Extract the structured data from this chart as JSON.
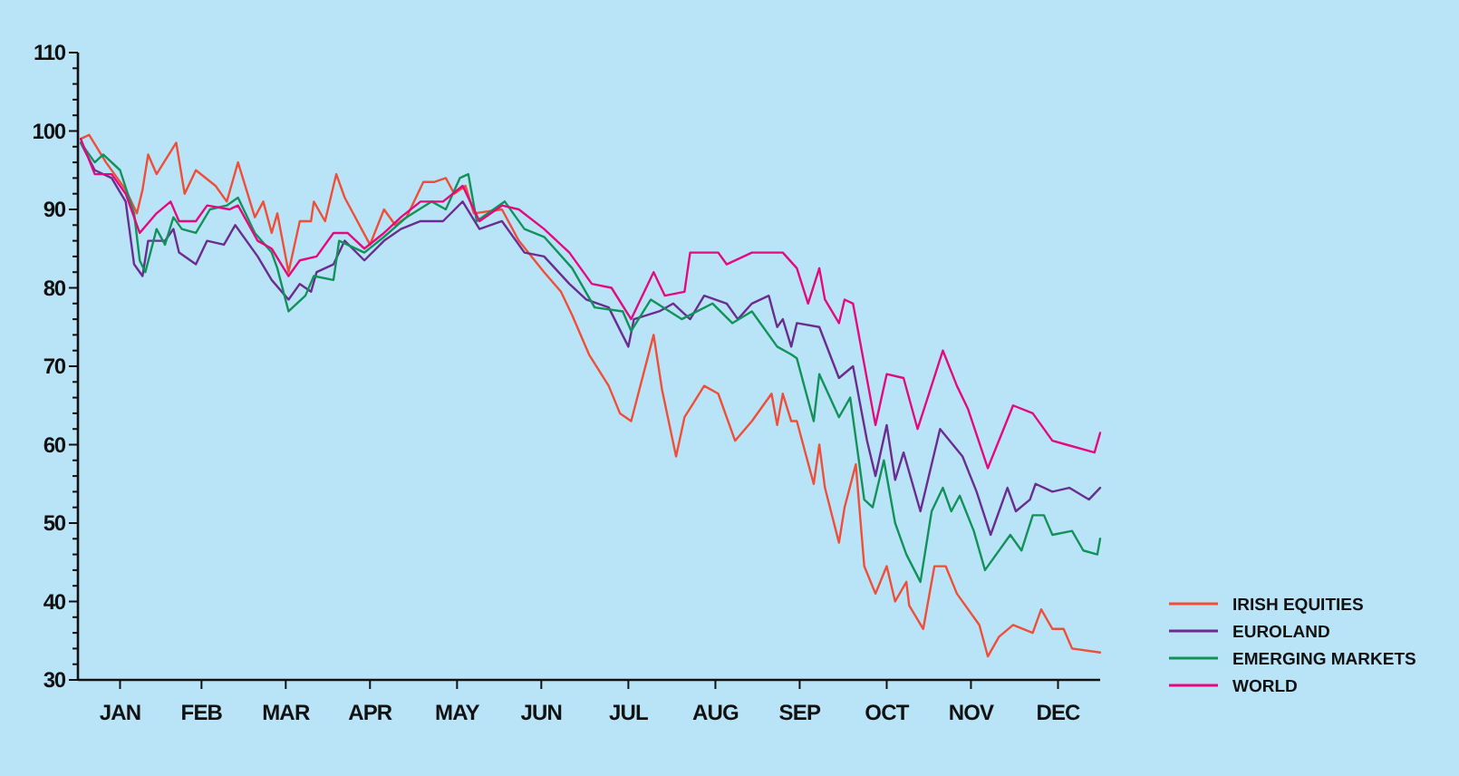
{
  "chart_data": {
    "type": "line",
    "xlim": [
      "--01-01",
      "--12-31"
    ],
    "ylim": [
      30,
      110
    ],
    "yticks": [
      30,
      {
        "value": 32,
        "label": null
      },
      {
        "value": 34,
        "label": null
      },
      {
        "value": 36,
        "label": null
      },
      {
        "value": 38,
        "label": null
      },
      40,
      {
        "value": 42,
        "label": null
      },
      {
        "value": 44,
        "label": null
      },
      {
        "value": 46,
        "label": null
      },
      {
        "value": 48,
        "label": null
      },
      50,
      {
        "value": 52,
        "label": null
      },
      {
        "value": 54,
        "label": null
      },
      {
        "value": 56,
        "label": null
      },
      {
        "value": 58,
        "label": null
      },
      60,
      {
        "value": 62,
        "label": null
      },
      {
        "value": 64,
        "label": null
      },
      {
        "value": 66,
        "label": null
      },
      {
        "value": 68,
        "label": null
      },
      70,
      {
        "value": 72,
        "label": null
      },
      {
        "value": 74,
        "label": null
      },
      {
        "value": 76,
        "label": null
      },
      {
        "value": 78,
        "label": null
      },
      80,
      {
        "value": 82,
        "label": null
      },
      {
        "value": 84,
        "label": null
      },
      {
        "value": 86,
        "label": null
      },
      {
        "value": 88,
        "label": null
      },
      90,
      {
        "value": 92,
        "label": null
      },
      {
        "value": 94,
        "label": null
      },
      {
        "value": 96,
        "label": null
      },
      {
        "value": 98,
        "label": null
      },
      100,
      {
        "value": 102,
        "label": null
      },
      {
        "value": 104,
        "label": null
      },
      {
        "value": 106,
        "label": null
      },
      {
        "value": 108,
        "label": null
      },
      110
    ],
    "xticks": [
      {
        "value": "--01-16",
        "label": "JAN"
      },
      {
        "value": "--02-14",
        "label": "FEB"
      },
      {
        "value": "--03-16",
        "label": "MAR"
      },
      {
        "value": "--04-15",
        "label": "APR"
      },
      {
        "value": "--05-16",
        "label": "MAY"
      },
      {
        "value": "--06-15",
        "label": "JUN"
      },
      {
        "value": "--07-16",
        "label": "JUL"
      },
      {
        "value": "--08-16",
        "label": "AUG"
      },
      {
        "value": "--09-15",
        "label": "SEP"
      },
      {
        "value": "--10-16",
        "label": "OCT"
      },
      {
        "value": "--11-15",
        "label": "NOV"
      },
      {
        "value": "--12-16",
        "label": "DEC"
      }
    ],
    "legend": "bottom right",
    "grid": false,
    "series": [
      {
        "name": "IRISH EQUITIES",
        "color": "#f04e37",
        "x": [
          "--01-02",
          "--01-05",
          "--01-11",
          "--01-18",
          "--01-22",
          "--01-24",
          "--01-26",
          "--01-29",
          "--02-05",
          "--02-08",
          "--02-12",
          "--02-19",
          "--02-23",
          "--02-27",
          "--03-05",
          "--03-08",
          "--03-11",
          "--03-13",
          "--03-17",
          "--03-21",
          "--03-25",
          "--03-26",
          "--03-30",
          "--04-03",
          "--04-06",
          "--04-15",
          "--04-20",
          "--04-24",
          "--04-28",
          "--05-04",
          "--05-08",
          "--05-12",
          "--05-15",
          "--05-19",
          "--05-22",
          "--06-01",
          "--06-07",
          "--06-16",
          "--06-22",
          "--06-26",
          "--07-02",
          "--07-09",
          "--07-13",
          "--07-17",
          "--07-25",
          "--07-28",
          "--08-02",
          "--08-05",
          "--08-12",
          "--08-17",
          "--08-23",
          "--08-29",
          "--09-05",
          "--09-07",
          "--09-09",
          "--09-12",
          "--09-14",
          "--09-20",
          "--09-22",
          "--09-24",
          "--09-29",
          "--10-01",
          "--10-05",
          "--10-08",
          "--10-12",
          "--10-16",
          "--10-19",
          "--10-23",
          "--10-24",
          "--10-29",
          "--11-02",
          "--11-06",
          "--11-10",
          "--11-18",
          "--11-21",
          "--11-25",
          "--11-30",
          "--12-07",
          "--12-10",
          "--12-14",
          "--12-18",
          "--12-21",
          "--12-31"
        ],
        "values": [
          99,
          99.5,
          96,
          92.5,
          89.5,
          92.5,
          97,
          94.5,
          98.5,
          92,
          95,
          93,
          91,
          96,
          89,
          91,
          87,
          89.5,
          82,
          88.5,
          88.5,
          91,
          88.5,
          94.5,
          91.5,
          85.5,
          90,
          88,
          89,
          93.5,
          93.5,
          94,
          92,
          93,
          89.5,
          90,
          86,
          82,
          79.5,
          76.5,
          71.5,
          67.5,
          64,
          63,
          74,
          67,
          58.5,
          63.5,
          67.5,
          66.5,
          60.5,
          63,
          66.5,
          62.5,
          66.5,
          63,
          63,
          55,
          60,
          54.5,
          47.5,
          52,
          57.5,
          44.5,
          41,
          44.5,
          40,
          42.5,
          39.5,
          36.5,
          44.5,
          44.5,
          41,
          37,
          33,
          35.5,
          37,
          36,
          39,
          36.5,
          36.5,
          34,
          33.5
        ]
      },
      {
        "name": "EUROLAND",
        "color": "#6a2c91",
        "x": [
          "--01-02",
          "--01-07",
          "--01-13",
          "--01-18",
          "--01-21",
          "--01-24",
          "--01-26",
          "--02-01",
          "--02-04",
          "--02-06",
          "--02-12",
          "--02-16",
          "--02-22",
          "--02-26",
          "--03-06",
          "--03-11",
          "--03-17",
          "--03-21",
          "--03-25",
          "--03-27",
          "--04-02",
          "--04-06",
          "--04-13",
          "--04-20",
          "--04-26",
          "--05-03",
          "--05-11",
          "--05-18",
          "--05-24",
          "--06-01",
          "--06-09",
          "--06-16",
          "--06-25",
          "--07-01",
          "--07-09",
          "--07-16",
          "--07-18",
          "--07-27",
          "--08-01",
          "--08-07",
          "--08-12",
          "--08-20",
          "--08-24",
          "--08-29",
          "--09-04",
          "--09-07",
          "--09-09",
          "--09-12",
          "--09-14",
          "--09-22",
          "--09-29",
          "--10-04",
          "--10-09",
          "--10-12",
          "--10-16",
          "--10-19",
          "--10-22",
          "--10-28",
          "--11-04",
          "--11-12",
          "--11-17",
          "--11-22",
          "--11-28",
          "--12-01",
          "--12-06",
          "--12-08",
          "--12-14",
          "--12-20",
          "--12-27",
          "--12-31"
        ],
        "values": [
          98.5,
          95,
          94,
          91,
          83,
          81.5,
          86,
          86,
          87.5,
          84.5,
          83,
          86,
          85.5,
          88,
          84,
          81,
          78.5,
          80.5,
          79.5,
          82,
          83,
          86,
          83.5,
          86,
          87.5,
          88.5,
          88.5,
          91,
          87.5,
          88.5,
          84.5,
          84,
          80.5,
          78.5,
          77.5,
          72.5,
          76,
          77,
          78,
          76,
          79,
          78,
          76,
          78,
          79,
          75,
          76,
          72.5,
          75.5,
          75,
          68.5,
          70,
          60.5,
          56,
          62.5,
          55.5,
          59,
          51.5,
          62,
          58.5,
          54,
          48.5,
          54.5,
          51.5,
          53,
          55,
          54,
          54.5,
          53,
          54.5
        ]
      },
      {
        "name": "EMERGING MARKETS",
        "color": "#12925a",
        "x": [
          "--01-02",
          "--01-07",
          "--01-10",
          "--01-16",
          "--01-21",
          "--01-23",
          "--01-25",
          "--01-29",
          "--02-01",
          "--02-04",
          "--02-07",
          "--02-12",
          "--02-17",
          "--02-23",
          "--02-27",
          "--03-05",
          "--03-11",
          "--03-13",
          "--03-17",
          "--03-23",
          "--03-26",
          "--04-02",
          "--04-04",
          "--04-13",
          "--04-20",
          "--04-28",
          "--05-07",
          "--05-12",
          "--05-17",
          "--05-20",
          "--05-23",
          "--06-02",
          "--06-09",
          "--06-16",
          "--06-26",
          "--07-04",
          "--07-14",
          "--07-17",
          "--07-24",
          "--08-04",
          "--08-15",
          "--08-22",
          "--08-29",
          "--09-07",
          "--09-12",
          "--09-14",
          "--09-20",
          "--09-22",
          "--09-29",
          "--10-03",
          "--10-08",
          "--10-11",
          "--10-15",
          "--10-19",
          "--10-23",
          "--10-28",
          "--11-01",
          "--11-05",
          "--11-08",
          "--11-11",
          "--11-16",
          "--11-20",
          "--11-29",
          "--12-03",
          "--12-07",
          "--12-11",
          "--12-14",
          "--12-21",
          "--12-25",
          "--12-30",
          "--12-31"
        ],
        "values": [
          98.5,
          96,
          97,
          95,
          89.5,
          83.5,
          82,
          87.5,
          85.5,
          89,
          87.5,
          87,
          90,
          90.5,
          91.5,
          87,
          84.5,
          82.5,
          77,
          79,
          81.5,
          81,
          86,
          84.5,
          86.5,
          89,
          91,
          90,
          94,
          94.5,
          88.5,
          91,
          87.5,
          86.5,
          82.5,
          77.5,
          77,
          74.5,
          78.5,
          76,
          78,
          75.5,
          77,
          72.5,
          71.5,
          71,
          63,
          69,
          63.5,
          66,
          53,
          52,
          58,
          50,
          46,
          42.5,
          51.5,
          54.5,
          51.5,
          53.5,
          49,
          44,
          48.5,
          46.5,
          51,
          51,
          48.5,
          49,
          46.5,
          46,
          48
        ]
      },
      {
        "name": "WORLD",
        "color": "#e5097f",
        "x": [
          "--01-02",
          "--01-07",
          "--01-13",
          "--01-18",
          "--01-23",
          "--01-29",
          "--02-03",
          "--02-06",
          "--02-12",
          "--02-16",
          "--02-24",
          "--02-27",
          "--03-06",
          "--03-11",
          "--03-17",
          "--03-21",
          "--03-27",
          "--04-02",
          "--04-07",
          "--04-13",
          "--04-20",
          "--04-26",
          "--05-03",
          "--05-11",
          "--05-18",
          "--05-24",
          "--06-01",
          "--06-07",
          "--06-16",
          "--06-25",
          "--07-03",
          "--07-10",
          "--07-17",
          "--07-25",
          "--07-29",
          "--08-05",
          "--08-07",
          "--08-17",
          "--08-20",
          "--08-29",
          "--09-05",
          "--09-09",
          "--09-14",
          "--09-18",
          "--09-22",
          "--09-24",
          "--09-29",
          "--10-01",
          "--10-04",
          "--10-12",
          "--10-16",
          "--10-22",
          "--10-27",
          "--11-05",
          "--11-10",
          "--11-14",
          "--11-21",
          "--11-30",
          "--12-07",
          "--12-14",
          "--12-19",
          "--12-29",
          "--12-31"
        ],
        "values": [
          99,
          94.5,
          94.5,
          92,
          87,
          89.5,
          91,
          88.5,
          88.5,
          90.5,
          90,
          90.5,
          86,
          85,
          81.5,
          83.5,
          84,
          87,
          87,
          85,
          87,
          89,
          91,
          91,
          93,
          88.5,
          90.5,
          90,
          87.5,
          84.5,
          80.5,
          80,
          76,
          82,
          79,
          79.5,
          84.5,
          84.5,
          83,
          84.5,
          84.5,
          84.5,
          82.5,
          78,
          82.5,
          78.5,
          75.5,
          78.5,
          78,
          62.5,
          69,
          68.5,
          62,
          72,
          67.5,
          64.5,
          57,
          65,
          64,
          60.5,
          60,
          59,
          61.5
        ]
      }
    ]
  }
}
